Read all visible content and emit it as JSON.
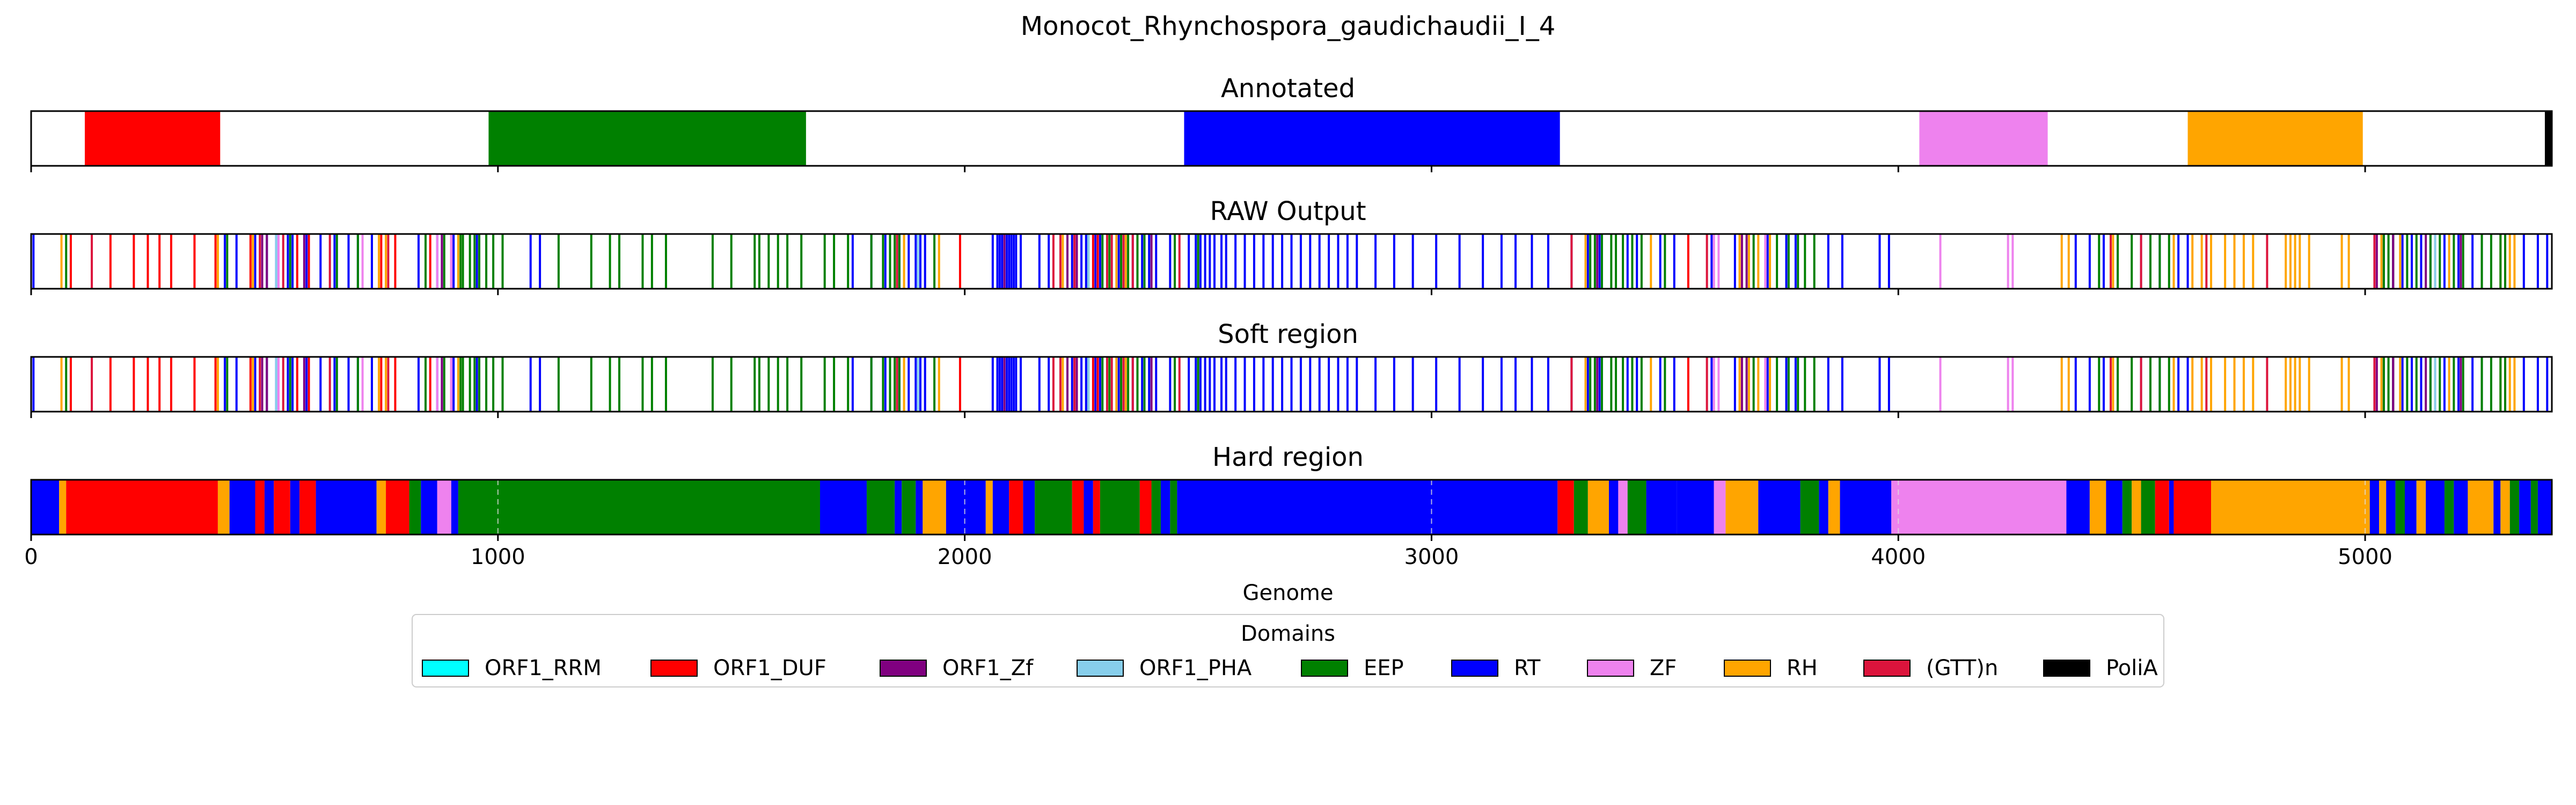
{
  "chart_data": {
    "type": "bar",
    "title": "Monocot_Rhynchospora_gaudichaudii_I_4",
    "xlabel": "Genome",
    "xlim": [
      0,
      5400
    ],
    "xticks": [
      0,
      1000,
      2000,
      3000,
      4000,
      5000
    ],
    "grid": "vertical dashed lines on Hard region",
    "domain_colors": {
      "ORF1_RRM": "#00ffff",
      "ORF1_DUF": "#ff0000",
      "ORF1_Zf": "#800080",
      "ORF1_PHA": "#87ceeb",
      "EEP": "#008000",
      "RT": "#0000ff",
      "ZF": "#ee82ee",
      "RH": "#ffa500",
      "(GTT)n": "#dc143c",
      "PoliA": "#000000"
    },
    "legend": {
      "title": "Domains",
      "placement": "below",
      "entries": [
        "ORF1_RRM",
        "ORF1_DUF",
        "ORF1_Zf",
        "ORF1_PHA",
        "EEP",
        "RT",
        "ZF",
        "RH",
        "(GTT)n",
        "PoliA"
      ]
    },
    "panels": [
      {
        "name": "Annotated",
        "mode": "segments",
        "segments": [
          {
            "d": "ORF1_DUF",
            "s": 115,
            "e": 405
          },
          {
            "d": "EEP",
            "s": 980,
            "e": 1660
          },
          {
            "d": "RT",
            "s": 2470,
            "e": 3275
          },
          {
            "d": "ZF",
            "s": 4045,
            "e": 4320
          },
          {
            "d": "RH",
            "s": 4620,
            "e": 4995
          },
          {
            "d": "PoliA",
            "s": 5385,
            "e": 5400
          }
        ]
      },
      {
        "name": "RAW Output",
        "mode": "lines",
        "lines": [
          {
            "d": "RT",
            "x": [
              5,
              415,
              440,
              480,
              505,
              525,
              550,
              560,
              590,
              620,
              650,
              680,
              700,
              730,
              830,
              870,
              880,
              905,
              955,
              1070,
              1090,
              1760,
              1800,
              1830,
              1860,
              1880,
              1895,
              1905,
              1915,
              2060,
              2070,
              2075,
              2080,
              2085,
              2090,
              2095,
              2100,
              2105,
              2110,
              2120,
              2160,
              2180,
              2230,
              2250,
              2260,
              2280,
              2290,
              2330,
              2345,
              2360,
              2380,
              2395,
              2410,
              2440,
              2480,
              2495,
              2505,
              2515,
              2525,
              2535,
              2550,
              2560,
              2580,
              2600,
              2620,
              2640,
              2660,
              2680,
              2700,
              2720,
              2740,
              2760,
              2780,
              2800,
              2820,
              2840,
              2880,
              2920,
              2960,
              3010,
              3060,
              3110,
              3150,
              3180,
              3215,
              3250,
              3300,
              3335,
              3360,
              3420,
              3440,
              3490,
              3520,
              3600,
              3650,
              3720,
              3760,
              3780,
              3850,
              3880,
              3960,
              3980,
              4380,
              4410,
              4440,
              4470,
              4520,
              4560,
              4600,
              4620,
              5020,
              5040,
              5060,
              5080,
              5100,
              5120,
              5140,
              5170,
              5200,
              5230,
              5250,
              5300,
              5340,
              5370,
              5390
            ]
          },
          {
            "d": "ORF1_DUF",
            "x": [
              85,
              170,
              220,
              250,
              275,
              300,
              350,
              395,
              470,
              570,
              595,
              750,
              780,
              855,
              1990,
              2240,
              2275,
              2285,
              3550
            ]
          },
          {
            "d": "(GTT)n",
            "x": [
              130,
              490,
              540,
              640,
              765,
              900,
              1855,
              2190,
              2205,
              2235,
              2305,
              2315,
              2340,
              2360,
              2460,
              3300,
              3590,
              4455,
              4520,
              4660,
              4790,
              5020,
              5150,
              5300
            ]
          },
          {
            "d": "RH",
            "x": [
              65,
              400,
              475,
              745,
              760,
              915,
              1870,
              1945,
              2210,
              2325,
              2345,
              3330,
              3470,
              3660,
              3680,
              3700,
              3725,
              4350,
              4365,
              4460,
              4590,
              4630,
              4650,
              4670,
              4700,
              4720,
              4740,
              4760,
              4830,
              4840,
              4850,
              4860,
              4880,
              4950,
              4965,
              5035,
              5075,
              5180,
              5290,
              5310,
              5320
            ]
          },
          {
            "d": "EEP",
            "x": [
              75,
              420,
              555,
              655,
              700,
              845,
              885,
              920,
              925,
              940,
              950,
              960,
              975,
              990,
              1010,
              1130,
              1200,
              1240,
              1260,
              1310,
              1330,
              1360,
              1460,
              1500,
              1550,
              1560,
              1580,
              1600,
              1620,
              1650,
              1700,
              1720,
              1750,
              1800,
              1825,
              1840,
              1850,
              1860,
              1935,
              2265,
              2295,
              2310,
              2335,
              2350,
              2370,
              2385,
              2450,
              2500,
              3340,
              3350,
              3365,
              3385,
              3395,
              3410,
              3430,
              3450,
              3500,
              3690,
              3740,
              3765,
              3785,
              3800,
              3820,
              4430,
              4470,
              4500,
              4540,
              4560,
              4580,
              5040,
              5050,
              5060,
              5090,
              5110,
              5140,
              5160,
              5190,
              5210,
              5250,
              5270,
              5290,
              5300
            ]
          },
          {
            "d": "ORF1_Zf",
            "x": [
              495,
              505,
              585,
              880,
              2085,
              2220,
              2240,
              2400,
              3355,
              3665,
              3675,
              5025,
              5060,
              5130,
              5205
            ]
          },
          {
            "d": "ZF",
            "x": [
              530,
              710,
              870,
              900,
              3605,
              3615,
              3715,
              4090,
              4235,
              4245
            ]
          },
          {
            "d": "ORF1_PHA",
            "x": [
              525,
              1900,
              2265,
              5150
            ]
          }
        ]
      },
      {
        "name": "Soft region",
        "mode": "lines",
        "same_as": "RAW Output"
      },
      {
        "name": "Hard region",
        "mode": "segments",
        "segments": [
          {
            "d": "RT",
            "s": 0,
            "e": 60
          },
          {
            "d": "RH",
            "s": 60,
            "e": 75
          },
          {
            "d": "ORF1_DUF",
            "s": 75,
            "e": 400
          },
          {
            "d": "RH",
            "s": 400,
            "e": 425
          },
          {
            "d": "RT",
            "s": 425,
            "e": 480
          },
          {
            "d": "ORF1_DUF",
            "s": 480,
            "e": 500
          },
          {
            "d": "RT",
            "s": 500,
            "e": 520
          },
          {
            "d": "ORF1_DUF",
            "s": 520,
            "e": 555
          },
          {
            "d": "RT",
            "s": 555,
            "e": 575
          },
          {
            "d": "ORF1_DUF",
            "s": 575,
            "e": 610
          },
          {
            "d": "RT",
            "s": 610,
            "e": 740
          },
          {
            "d": "RH",
            "s": 740,
            "e": 760
          },
          {
            "d": "ORF1_DUF",
            "s": 760,
            "e": 810
          },
          {
            "d": "EEP",
            "s": 810,
            "e": 835
          },
          {
            "d": "RT",
            "s": 835,
            "e": 870
          },
          {
            "d": "ZF",
            "s": 870,
            "e": 900
          },
          {
            "d": "RT",
            "s": 900,
            "e": 915
          },
          {
            "d": "EEP",
            "s": 915,
            "e": 1690
          },
          {
            "d": "RT",
            "s": 1690,
            "e": 1790
          },
          {
            "d": "EEP",
            "s": 1790,
            "e": 1850
          },
          {
            "d": "RT",
            "s": 1850,
            "e": 1865
          },
          {
            "d": "EEP",
            "s": 1865,
            "e": 1895
          },
          {
            "d": "RT",
            "s": 1895,
            "e": 1910
          },
          {
            "d": "RH",
            "s": 1910,
            "e": 1960
          },
          {
            "d": "RT",
            "s": 1960,
            "e": 2045
          },
          {
            "d": "RH",
            "s": 2045,
            "e": 2060
          },
          {
            "d": "RT",
            "s": 2060,
            "e": 2095
          },
          {
            "d": "ORF1_DUF",
            "s": 2095,
            "e": 2125
          },
          {
            "d": "RT",
            "s": 2125,
            "e": 2150
          },
          {
            "d": "EEP",
            "s": 2150,
            "e": 2230
          },
          {
            "d": "ORF1_DUF",
            "s": 2230,
            "e": 2255
          },
          {
            "d": "RT",
            "s": 2255,
            "e": 2275
          },
          {
            "d": "ORF1_DUF",
            "s": 2275,
            "e": 2290
          },
          {
            "d": "EEP",
            "s": 2290,
            "e": 2375
          },
          {
            "d": "ORF1_DUF",
            "s": 2375,
            "e": 2400
          },
          {
            "d": "EEP",
            "s": 2400,
            "e": 2420
          },
          {
            "d": "RT",
            "s": 2420,
            "e": 2440
          },
          {
            "d": "EEP",
            "s": 2440,
            "e": 2455
          },
          {
            "d": "RT",
            "s": 2455,
            "e": 3270
          },
          {
            "d": "ORF1_DUF",
            "s": 3270,
            "e": 3305
          },
          {
            "d": "EEP",
            "s": 3305,
            "e": 3335
          },
          {
            "d": "RH",
            "s": 3335,
            "e": 3380
          },
          {
            "d": "RT",
            "s": 3380,
            "e": 3400
          },
          {
            "d": "ZF",
            "s": 3400,
            "e": 3420
          },
          {
            "d": "EEP",
            "s": 3420,
            "e": 3460
          },
          {
            "d": "RT",
            "s": 3460,
            "e": 3525
          },
          {
            "d": "RT",
            "s": 3525,
            "e": 3605
          },
          {
            "d": "ZF",
            "s": 3605,
            "e": 3630
          },
          {
            "d": "RH",
            "s": 3630,
            "e": 3700
          },
          {
            "d": "RT",
            "s": 3700,
            "e": 3790
          },
          {
            "d": "EEP",
            "s": 3790,
            "e": 3830
          },
          {
            "d": "RT",
            "s": 3830,
            "e": 3850
          },
          {
            "d": "RH",
            "s": 3850,
            "e": 3875
          },
          {
            "d": "RT",
            "s": 3875,
            "e": 3985
          },
          {
            "d": "ZF",
            "s": 3985,
            "e": 4360
          },
          {
            "d": "RT",
            "s": 4360,
            "e": 4410
          },
          {
            "d": "RH",
            "s": 4410,
            "e": 4445
          },
          {
            "d": "RT",
            "s": 4445,
            "e": 4480
          },
          {
            "d": "EEP",
            "s": 4480,
            "e": 4500
          },
          {
            "d": "RH",
            "s": 4500,
            "e": 4520
          },
          {
            "d": "EEP",
            "s": 4520,
            "e": 4550
          },
          {
            "d": "ORF1_DUF",
            "s": 4550,
            "e": 4580
          },
          {
            "d": "RT",
            "s": 4580,
            "e": 4590
          },
          {
            "d": "ORF1_DUF",
            "s": 4590,
            "e": 4670
          },
          {
            "d": "RH",
            "s": 4670,
            "e": 5010
          },
          {
            "d": "RT",
            "s": 5010,
            "e": 5030
          },
          {
            "d": "RH",
            "s": 5030,
            "e": 5045
          },
          {
            "d": "RT",
            "s": 5045,
            "e": 5065
          },
          {
            "d": "EEP",
            "s": 5065,
            "e": 5085
          },
          {
            "d": "RT",
            "s": 5085,
            "e": 5110
          },
          {
            "d": "RH",
            "s": 5110,
            "e": 5130
          },
          {
            "d": "RT",
            "s": 5130,
            "e": 5170
          },
          {
            "d": "EEP",
            "s": 5170,
            "e": 5190
          },
          {
            "d": "RT",
            "s": 5190,
            "e": 5220
          },
          {
            "d": "RH",
            "s": 5220,
            "e": 5275
          },
          {
            "d": "RT",
            "s": 5275,
            "e": 5290
          },
          {
            "d": "RH",
            "s": 5290,
            "e": 5310
          },
          {
            "d": "EEP",
            "s": 5310,
            "e": 5330
          },
          {
            "d": "RT",
            "s": 5330,
            "e": 5355
          },
          {
            "d": "EEP",
            "s": 5355,
            "e": 5370
          },
          {
            "d": "RT",
            "s": 5370,
            "e": 5400
          }
        ]
      }
    ]
  }
}
